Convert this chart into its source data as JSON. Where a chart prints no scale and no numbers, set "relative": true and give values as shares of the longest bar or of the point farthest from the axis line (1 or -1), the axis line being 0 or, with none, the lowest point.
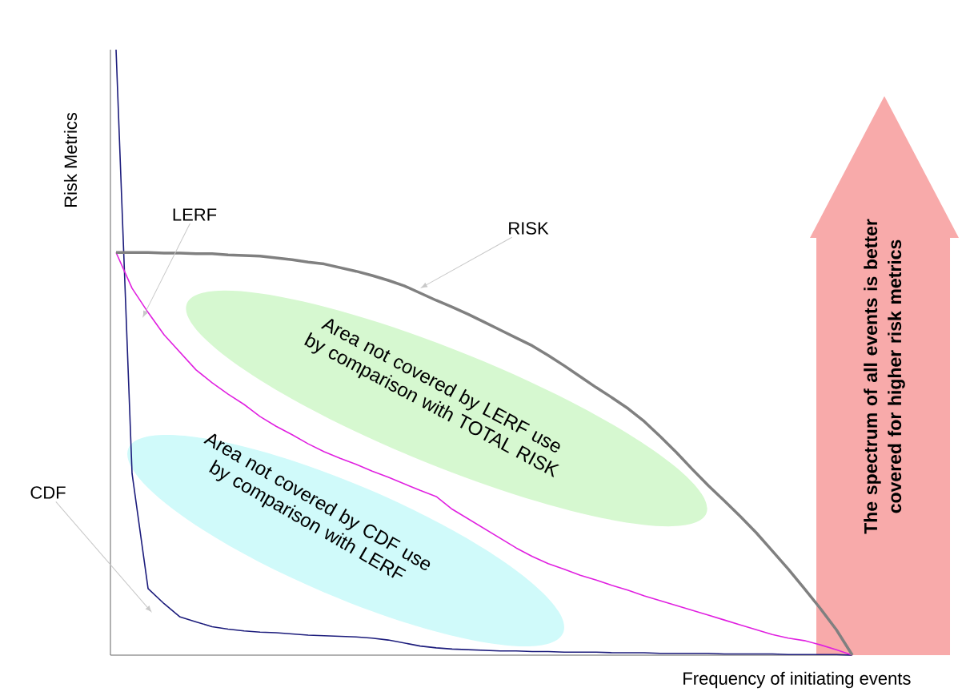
{
  "chart_data": {
    "type": "line",
    "relative": true,
    "xlabel": "Frequency of initiating events",
    "ylabel": "Risk Metrics",
    "categories": [
      null,
      null,
      null,
      null,
      null,
      null,
      null,
      null,
      null,
      null,
      null,
      null,
      null,
      null,
      null,
      null,
      null,
      null,
      null,
      null,
      null,
      null,
      null,
      null,
      null,
      null,
      null,
      null,
      null,
      null,
      null,
      null,
      null,
      null,
      null,
      null,
      null,
      null,
      null,
      null,
      null,
      null,
      null,
      null,
      null,
      null,
      null
    ],
    "series": [
      {
        "name": "CDF",
        "color": "#1c1c7c",
        "values": [
          1.0,
          0.3,
          0.11,
          0.085,
          0.063,
          0.055,
          0.047,
          0.043,
          0.04,
          0.038,
          0.037,
          0.035,
          0.033,
          0.032,
          0.031,
          0.03,
          0.028,
          0.025,
          0.02,
          0.015,
          0.012,
          0.01,
          0.009,
          0.008,
          0.007,
          0.007,
          0.006,
          0.006,
          0.005,
          0.005,
          0.005,
          0.004,
          0.004,
          0.004,
          0.003,
          0.003,
          0.003,
          0.003,
          0.002,
          0.002,
          0.002,
          0.002,
          0.001,
          0.001,
          0.001,
          0.001,
          0
        ]
      },
      {
        "name": "LERF",
        "color": "#e020e0",
        "values": [
          0.665,
          0.606,
          0.566,
          0.529,
          0.5,
          0.471,
          0.45,
          0.431,
          0.414,
          0.394,
          0.378,
          0.364,
          0.349,
          0.336,
          0.325,
          0.315,
          0.304,
          0.294,
          0.283,
          0.272,
          0.262,
          0.241,
          0.225,
          0.209,
          0.193,
          0.177,
          0.163,
          0.151,
          0.142,
          0.132,
          0.124,
          0.115,
          0.107,
          0.098,
          0.09,
          0.082,
          0.074,
          0.066,
          0.058,
          0.05,
          0.042,
          0.034,
          0.028,
          0.024,
          0.017,
          0.009,
          0
        ]
      },
      {
        "name": "RISK",
        "color": "#808080",
        "values": [
          0.665,
          0.665,
          0.665,
          0.664,
          0.664,
          0.663,
          0.663,
          0.661,
          0.66,
          0.659,
          0.656,
          0.653,
          0.649,
          0.646,
          0.64,
          0.634,
          0.627,
          0.619,
          0.61,
          0.598,
          0.586,
          0.575,
          0.563,
          0.55,
          0.537,
          0.524,
          0.511,
          0.495,
          0.478,
          0.46,
          0.442,
          0.425,
          0.407,
          0.386,
          0.361,
          0.335,
          0.307,
          0.28,
          0.255,
          0.229,
          0.202,
          0.172,
          0.142,
          0.11,
          0.077,
          0.042,
          0
        ]
      }
    ],
    "annotations": [
      "Area not covered by LERF use by comparison with TOTAL RISK",
      "Area not covered by CDF use by comparison with LERF",
      "The spectrum of all events is better covered for higher risk metrics"
    ]
  }
}
